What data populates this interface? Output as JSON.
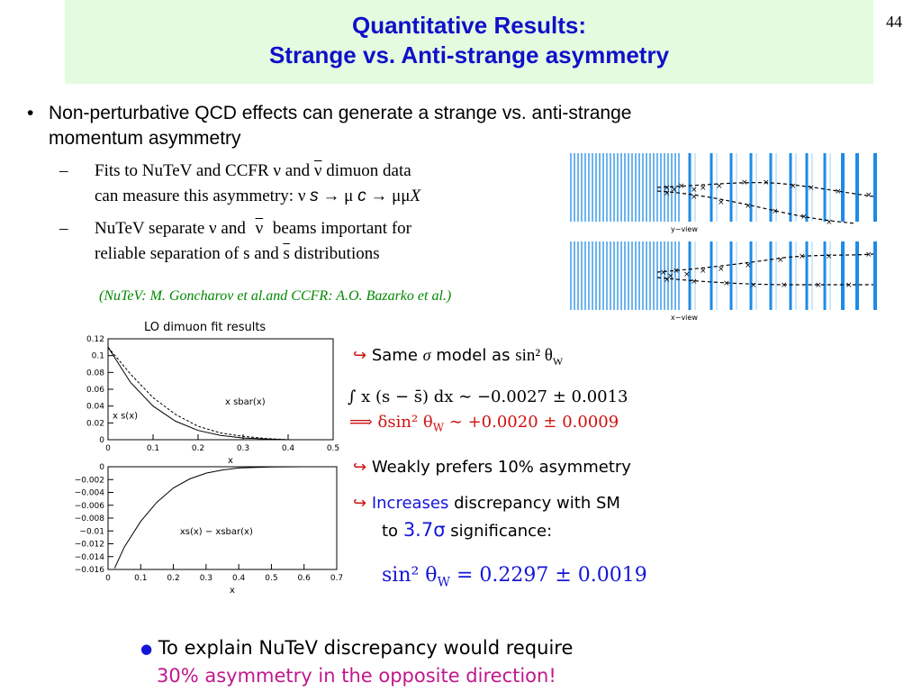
{
  "page_number": "44",
  "title": {
    "line1": "Quantitative Results:",
    "line2": "Strange vs. Anti-strange asymmetry"
  },
  "bullet_main": {
    "line1": "Non-perturbative QCD effects can generate a strange vs. anti-strange",
    "line2": "momentum asymmetry"
  },
  "sub1": {
    "line1_a": "Fits to NuTeV and CCFR ν and",
    "line1_nubar": "ν",
    "line1_b": "dimuon data",
    "line2_a": "can measure this asymmetry:  ν",
    "line2_s": "s",
    "line2_b": "→ μ",
    "line2_c": "c",
    "line2_d": "→ μμ",
    "line2_x": "X"
  },
  "sub2": {
    "line1_a": "NuTeV separate ν and",
    "line1_nubar": "ν",
    "line1_b": "beams important for",
    "line2_a": "reliable separation of s and",
    "line2_sbar": "s",
    "line2_b": "distributions"
  },
  "reference": "(NuTeV: M. Goncharov et al.and CCFR: A.O. Bazarko et al.)",
  "event_display": {
    "top_label": "y−view",
    "bottom_label": "x−view"
  },
  "plot_title": "LO dimuon fit results",
  "chart_data": [
    {
      "type": "line",
      "title": "LO dimuon fit results",
      "xlabel": "x",
      "ylabel": "",
      "xlim": [
        0,
        0.5
      ],
      "ylim": [
        0,
        0.12
      ],
      "x_ticks": [
        "0",
        "0.1",
        "0.2",
        "0.3",
        "0.4",
        "0.5"
      ],
      "y_ticks": [
        "0",
        "0.02",
        "0.04",
        "0.06",
        "0.08",
        "0.1",
        "0.12"
      ],
      "series": [
        {
          "name": "x s(x)",
          "style": "solid",
          "x": [
            0,
            0.05,
            0.1,
            0.15,
            0.2,
            0.25,
            0.3,
            0.35,
            0.4
          ],
          "values": [
            0.11,
            0.068,
            0.04,
            0.022,
            0.011,
            0.005,
            0.002,
            0.001,
            0.0
          ]
        },
        {
          "name": "x sbar(x)",
          "style": "dashed",
          "x": [
            0,
            0.05,
            0.1,
            0.15,
            0.2,
            0.25,
            0.3,
            0.35,
            0.4
          ],
          "values": [
            0.11,
            0.078,
            0.05,
            0.03,
            0.016,
            0.008,
            0.004,
            0.0015,
            0.0
          ]
        }
      ]
    },
    {
      "type": "line",
      "title": "",
      "xlabel": "x",
      "ylabel": "",
      "xlim": [
        0,
        0.7
      ],
      "ylim": [
        -0.016,
        0
      ],
      "x_ticks": [
        "0",
        "0.1",
        "0.2",
        "0.3",
        "0.4",
        "0.5",
        "0.6",
        "0.7"
      ],
      "y_ticks": [
        "0",
        "−0.002",
        "−0.004",
        "−0.006",
        "−0.008",
        "−0.01",
        "−0.012",
        "−0.014",
        "−0.016"
      ],
      "series": [
        {
          "name": "xs(x) − xsbar(x)",
          "style": "solid",
          "x": [
            0.02,
            0.05,
            0.1,
            0.15,
            0.2,
            0.25,
            0.3,
            0.35,
            0.4,
            0.45,
            0.5,
            0.6,
            0.7
          ],
          "values": [
            -0.0158,
            -0.0125,
            -0.0085,
            -0.0055,
            -0.0033,
            -0.0019,
            -0.001,
            -0.0005,
            -0.0002,
            -0.0001,
            -3e-05,
            0.0,
            0.0
          ]
        }
      ]
    }
  ],
  "notes": {
    "n1_a": "Same",
    "n1_sigma": "σ",
    "n1_b": "model as",
    "n1_math": "sin² θ",
    "n1_sub": "W",
    "n2_math": "∫ x (s − s̄) dx ∼ −0.0027 ± 0.0013",
    "n3_math": "⟹  δsin² θ",
    "n3_sub": "W",
    "n3_rest": " ∼ +0.0020 ± 0.0009",
    "n4": "Weakly prefers 10% asymmetry",
    "n5_increases": "Increases",
    "n5_rest": "discrepancy with SM",
    "n6_to": "to",
    "n6_val": "3.7σ",
    "n6_rest": "significance:",
    "n7_math": "sin² θ",
    "n7_sub": "W",
    "n7_rest": " = 0.2297 ± 0.0019"
  },
  "bottom": {
    "line1": "To explain NuTeV discrepancy would require",
    "line2": "30% asymmetry in the opposite direction!"
  },
  "colors": {
    "title_bg": "#e4fbe0",
    "title_text": "#1010c8",
    "reference": "#008800",
    "accent_red": "#d01010",
    "accent_blue": "#1515d8",
    "bottom_pink": "#c0188c",
    "detector_blue": "#1e8be6"
  }
}
